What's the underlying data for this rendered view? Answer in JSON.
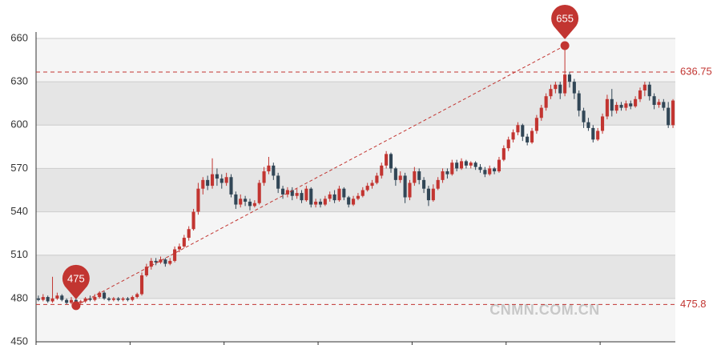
{
  "chart_data": {
    "type": "candlestick",
    "values": [
      [
        480,
        479,
        478,
        482
      ],
      [
        479,
        481,
        478,
        483
      ],
      [
        481,
        478,
        477,
        482
      ],
      [
        478,
        480,
        477,
        495
      ],
      [
        480,
        482,
        479,
        484
      ],
      [
        482,
        479,
        478,
        483
      ],
      [
        479,
        477,
        476,
        480
      ],
      [
        477,
        479,
        476,
        481
      ],
      [
        479,
        477,
        475,
        480
      ],
      [
        477,
        478,
        476,
        479
      ],
      [
        478,
        480,
        477,
        481
      ],
      [
        480,
        479,
        478,
        482
      ],
      [
        479,
        481,
        478,
        483
      ],
      [
        481,
        484,
        480,
        485
      ],
      [
        484,
        480,
        479,
        485
      ],
      [
        480,
        479,
        478,
        481
      ],
      [
        479,
        480,
        478,
        481
      ],
      [
        480,
        479,
        478,
        481
      ],
      [
        479,
        480,
        478,
        481
      ],
      [
        480,
        479,
        478,
        481
      ],
      [
        479,
        481,
        478,
        482
      ],
      [
        481,
        483,
        480,
        484
      ],
      [
        483,
        496,
        482,
        498
      ],
      [
        496,
        502,
        495,
        504
      ],
      [
        502,
        506,
        500,
        508
      ],
      [
        506,
        505,
        503,
        508
      ],
      [
        505,
        507,
        504,
        509
      ],
      [
        507,
        504,
        502,
        508
      ],
      [
        504,
        506,
        503,
        508
      ],
      [
        506,
        514,
        505,
        516
      ],
      [
        514,
        516,
        512,
        518
      ],
      [
        516,
        522,
        515,
        524
      ],
      [
        522,
        528,
        520,
        530
      ],
      [
        528,
        540,
        527,
        542
      ],
      [
        540,
        556,
        538,
        560
      ],
      [
        556,
        562,
        552,
        564
      ],
      [
        562,
        558,
        555,
        565
      ],
      [
        558,
        566,
        556,
        577
      ],
      [
        566,
        563,
        558,
        570
      ],
      [
        563,
        560,
        556,
        566
      ],
      [
        560,
        564,
        558,
        567
      ],
      [
        564,
        552,
        550,
        566
      ],
      [
        552,
        545,
        542,
        554
      ],
      [
        545,
        549,
        543,
        552
      ],
      [
        549,
        547,
        544,
        551
      ],
      [
        547,
        544,
        541,
        549
      ],
      [
        544,
        546,
        543,
        548
      ],
      [
        546,
        560,
        545,
        562
      ],
      [
        560,
        568,
        558,
        571
      ],
      [
        568,
        572,
        566,
        578
      ],
      [
        572,
        565,
        562,
        574
      ],
      [
        565,
        556,
        553,
        567
      ],
      [
        556,
        552,
        549,
        558
      ],
      [
        552,
        555,
        550,
        557
      ],
      [
        555,
        551,
        548,
        557
      ],
      [
        551,
        553,
        549,
        556
      ],
      [
        553,
        548,
        546,
        555
      ],
      [
        548,
        556,
        547,
        558
      ],
      [
        556,
        545,
        543,
        557
      ],
      [
        545,
        547,
        543,
        549
      ],
      [
        547,
        545,
        543,
        549
      ],
      [
        545,
        549,
        544,
        551
      ],
      [
        549,
        552,
        547,
        554
      ],
      [
        552,
        548,
        546,
        555
      ],
      [
        548,
        556,
        547,
        558
      ],
      [
        556,
        550,
        548,
        557
      ],
      [
        550,
        545,
        543,
        551
      ],
      [
        545,
        549,
        544,
        551
      ],
      [
        549,
        551,
        548,
        553
      ],
      [
        551,
        555,
        550,
        557
      ],
      [
        555,
        558,
        554,
        560
      ],
      [
        558,
        560,
        556,
        562
      ],
      [
        560,
        565,
        559,
        567
      ],
      [
        565,
        572,
        563,
        574
      ],
      [
        572,
        580,
        570,
        582
      ],
      [
        580,
        570,
        567,
        581
      ],
      [
        570,
        562,
        558,
        571
      ],
      [
        562,
        565,
        560,
        568
      ],
      [
        565,
        550,
        546,
        567
      ],
      [
        550,
        560,
        548,
        562
      ],
      [
        560,
        568,
        558,
        571
      ],
      [
        568,
        562,
        559,
        570
      ],
      [
        562,
        556,
        553,
        564
      ],
      [
        556,
        548,
        544,
        558
      ],
      [
        548,
        556,
        547,
        559
      ],
      [
        556,
        562,
        555,
        564
      ],
      [
        562,
        568,
        560,
        570
      ],
      [
        568,
        566,
        563,
        570
      ],
      [
        566,
        574,
        565,
        576
      ],
      [
        574,
        570,
        568,
        576
      ],
      [
        570,
        575,
        569,
        577
      ],
      [
        575,
        572,
        570,
        576
      ],
      [
        572,
        574,
        570,
        575
      ],
      [
        574,
        571,
        569,
        575
      ],
      [
        571,
        569,
        567,
        573
      ],
      [
        569,
        566,
        564,
        571
      ],
      [
        566,
        570,
        565,
        572
      ],
      [
        570,
        568,
        566,
        571
      ],
      [
        568,
        576,
        567,
        578
      ],
      [
        576,
        584,
        575,
        586
      ],
      [
        584,
        590,
        582,
        592
      ],
      [
        590,
        595,
        588,
        597
      ],
      [
        595,
        600,
        593,
        602
      ],
      [
        600,
        592,
        589,
        601
      ],
      [
        592,
        588,
        586,
        594
      ],
      [
        588,
        596,
        587,
        598
      ],
      [
        596,
        605,
        594,
        607
      ],
      [
        605,
        612,
        603,
        614
      ],
      [
        612,
        620,
        610,
        622
      ],
      [
        620,
        625,
        618,
        628
      ],
      [
        625,
        628,
        622,
        630
      ],
      [
        628,
        622,
        618,
        630
      ],
      [
        622,
        635,
        620,
        655
      ],
      [
        635,
        630,
        626,
        637
      ],
      [
        630,
        622,
        618,
        632
      ],
      [
        622,
        610,
        606,
        624
      ],
      [
        610,
        602,
        598,
        612
      ],
      [
        602,
        598,
        596,
        605
      ],
      [
        598,
        590,
        588,
        600
      ],
      [
        590,
        596,
        589,
        598
      ],
      [
        596,
        606,
        594,
        608
      ],
      [
        606,
        618,
        604,
        621
      ],
      [
        618,
        610,
        606,
        625
      ],
      [
        610,
        614,
        608,
        616
      ],
      [
        614,
        612,
        610,
        616
      ],
      [
        612,
        615,
        610,
        617
      ],
      [
        615,
        613,
        611,
        617
      ],
      [
        613,
        618,
        612,
        620
      ],
      [
        618,
        624,
        616,
        626
      ],
      [
        624,
        628,
        620,
        630
      ],
      [
        628,
        620,
        617,
        630
      ],
      [
        620,
        614,
        611,
        622
      ],
      [
        614,
        616,
        612,
        618
      ],
      [
        616,
        612,
        610,
        618
      ],
      [
        612,
        600,
        598,
        616
      ],
      [
        600,
        617,
        598,
        618
      ]
    ],
    "up_color": "#c23531",
    "down_color": "#314656",
    "ylim": [
      450,
      660
    ],
    "yticks": [
      450,
      480,
      510,
      540,
      570,
      600,
      630,
      660
    ],
    "grid": true,
    "band_colors": [
      "#f5f5f5",
      "#e5e5e5"
    ],
    "mark_points": [
      655,
      475
    ],
    "mark_lines": [
      636.75,
      475.8
    ],
    "mark_color": "#c23531",
    "watermark": "CNMN.COM.CN"
  }
}
